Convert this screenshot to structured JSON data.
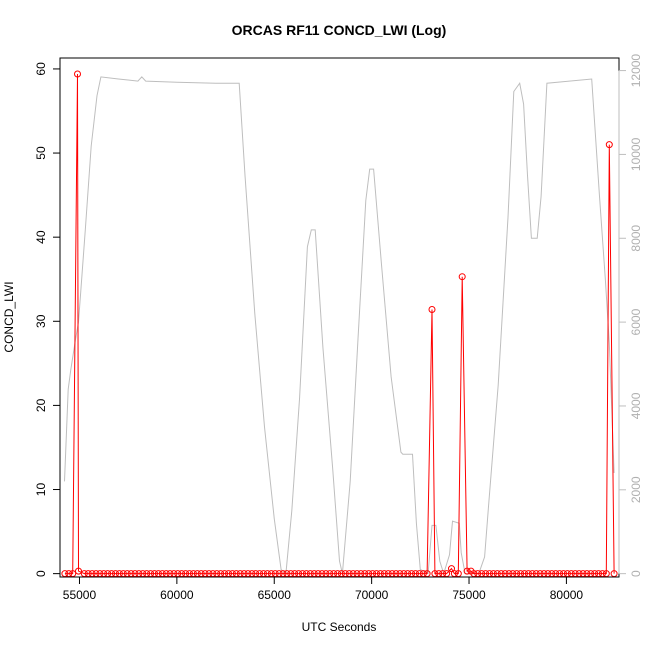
{
  "chart_data": {
    "type": "line",
    "title": "ORCAS RF11 CONCD_LWI (Log)",
    "xlabel": "UTC Seconds",
    "ylabel": "CONCD_LWI",
    "xlim": [
      54000,
      82700
    ],
    "ylim": [
      -0.4,
      61.3
    ],
    "y2lim": [
      -80,
      12300
    ],
    "x_ticks": [
      55000,
      60000,
      65000,
      70000,
      75000,
      80000
    ],
    "y_ticks": [
      0,
      10,
      20,
      30,
      40,
      50,
      60
    ],
    "y2_ticks": [
      0,
      2000,
      4000,
      6000,
      8000,
      10000,
      12000
    ],
    "grid": false,
    "colors": {
      "concd": "#ff0000",
      "altitude": "#bebebe",
      "axis": "#000000",
      "right_axis": "#bebebe"
    },
    "series": [
      {
        "role": "altitude_secondary_axis",
        "line": "solid",
        "points": [
          [
            54230,
            2200
          ],
          [
            54420,
            4400
          ],
          [
            54550,
            4850
          ],
          [
            54800,
            5600
          ],
          [
            54950,
            6000
          ],
          [
            55300,
            8200
          ],
          [
            55600,
            10200
          ],
          [
            55900,
            11400
          ],
          [
            56100,
            11850
          ],
          [
            57000,
            11800
          ],
          [
            58000,
            11750
          ],
          [
            58200,
            11850
          ],
          [
            58400,
            11750
          ],
          [
            60000,
            11720
          ],
          [
            62000,
            11700
          ],
          [
            63200,
            11700
          ],
          [
            63500,
            9500
          ],
          [
            64000,
            6200
          ],
          [
            64500,
            3500
          ],
          [
            65000,
            1300
          ],
          [
            65350,
            100
          ],
          [
            65600,
            0
          ],
          [
            65900,
            1500
          ],
          [
            66300,
            4200
          ],
          [
            66700,
            7800
          ],
          [
            66900,
            8200
          ],
          [
            67100,
            8200
          ],
          [
            67500,
            5400
          ],
          [
            68000,
            2500
          ],
          [
            68350,
            300
          ],
          [
            68500,
            0
          ],
          [
            68900,
            2200
          ],
          [
            69300,
            5600
          ],
          [
            69700,
            8900
          ],
          [
            69900,
            9650
          ],
          [
            70100,
            9650
          ],
          [
            70500,
            7400
          ],
          [
            71000,
            4700
          ],
          [
            71500,
            2900
          ],
          [
            71600,
            2850
          ],
          [
            72100,
            2850
          ],
          [
            72300,
            1200
          ],
          [
            72500,
            100
          ],
          [
            72900,
            0
          ],
          [
            73100,
            1150
          ],
          [
            73300,
            1150
          ],
          [
            73500,
            300
          ],
          [
            73700,
            0
          ],
          [
            74000,
            450
          ],
          [
            74150,
            1250
          ],
          [
            74500,
            1200
          ],
          [
            74600,
            500
          ],
          [
            74800,
            0
          ],
          [
            75500,
            0
          ],
          [
            75800,
            400
          ],
          [
            76000,
            1600
          ],
          [
            76500,
            4500
          ],
          [
            77000,
            8500
          ],
          [
            77300,
            11500
          ],
          [
            77600,
            11700
          ],
          [
            77800,
            11200
          ],
          [
            78000,
            9500
          ],
          [
            78200,
            8000
          ],
          [
            78500,
            8000
          ],
          [
            78700,
            9000
          ],
          [
            79000,
            11700
          ],
          [
            81300,
            11800
          ],
          [
            81700,
            9000
          ],
          [
            82000,
            7000
          ],
          [
            82200,
            5500
          ],
          [
            82450,
            2400
          ]
        ]
      },
      {
        "name": "CONCD_LWI",
        "line": "vertical spikes with circle markers",
        "spikes": [
          {
            "x": 54900,
            "y": 59.4
          },
          {
            "x": 73100,
            "y": 31.4
          },
          {
            "x": 74650,
            "y": 35.3
          },
          {
            "x": 82200,
            "y": 51.0
          }
        ],
        "minor_points": [
          {
            "x": 54950,
            "y": 0.3
          },
          {
            "x": 74100,
            "y": 0.6
          },
          {
            "x": 74900,
            "y": 0.3
          },
          {
            "x": 75100,
            "y": 0.3
          }
        ],
        "baseline": 0,
        "marker_range": [
          54250,
          82450
        ],
        "marker_step": 200
      }
    ]
  }
}
